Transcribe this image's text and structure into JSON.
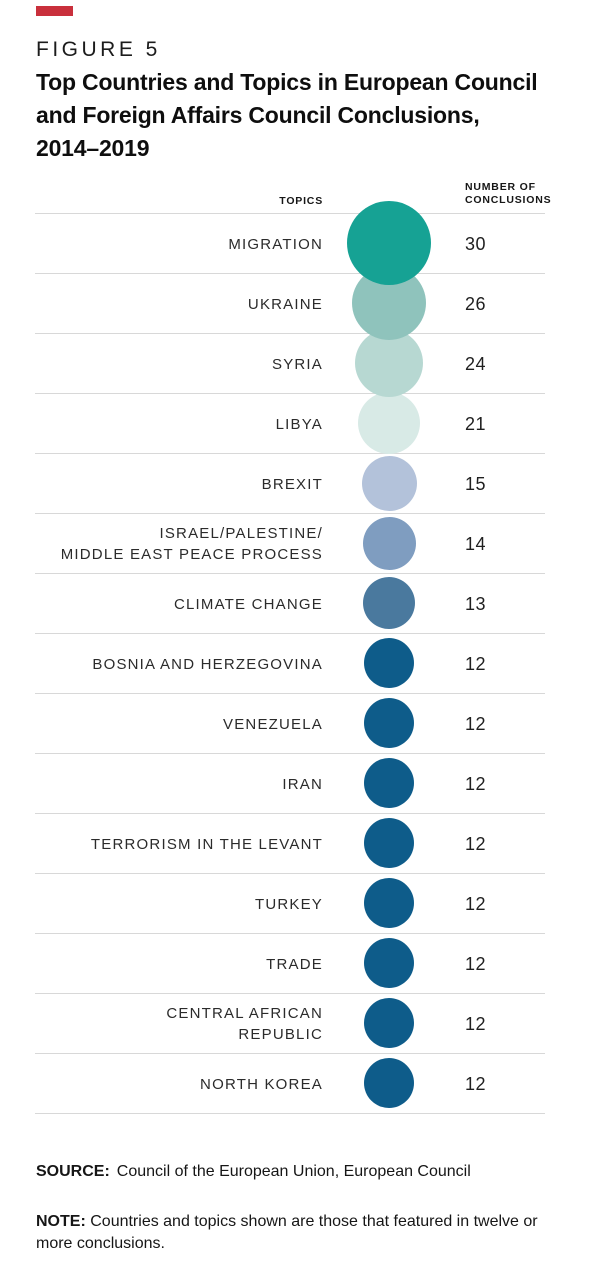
{
  "figure": {
    "label": "FIGURE 5",
    "title": "Top Countries and Topics in European Council\nand Foreign Affairs Council Conclusions,\n2014–2019"
  },
  "headers": {
    "topics": "TOPICS",
    "number": "NUMBER OF\nCONCLUSIONS"
  },
  "colors": {
    "figure_accent": "#c9303c",
    "row_separator": "#d8d8d8"
  },
  "chart_data": {
    "type": "bubble",
    "title": "Top Countries and Topics in European Council and Foreign Affairs Council Conclusions, 2014–2019",
    "columns": [
      "TOPICS",
      "NUMBER OF CONCLUSIONS"
    ],
    "legend_position": "none",
    "grid": "horizontal-row-separators",
    "rows": [
      {
        "topic": "MIGRATION",
        "value": 30,
        "color": "#16a294",
        "diameter": 84
      },
      {
        "topic": "UKRAINE",
        "value": 26,
        "color": "#8fc3bc",
        "diameter": 74
      },
      {
        "topic": "SYRIA",
        "value": 24,
        "color": "#b7d8d2",
        "diameter": 68
      },
      {
        "topic": "LIBYA",
        "value": 21,
        "color": "#d8eae6",
        "diameter": 62
      },
      {
        "topic": "BREXIT",
        "value": 15,
        "color": "#b3c2da",
        "diameter": 55
      },
      {
        "topic": "ISRAEL/PALESTINE/\nMIDDLE EAST PEACE PROCESS",
        "value": 14,
        "color": "#7f9dc0",
        "diameter": 53
      },
      {
        "topic": "CLIMATE CHANGE",
        "value": 13,
        "color": "#4a799e",
        "diameter": 52
      },
      {
        "topic": "BOSNIA AND HERZEGOVINA",
        "value": 12,
        "color": "#0e5c8a",
        "diameter": 50
      },
      {
        "topic": "VENEZUELA",
        "value": 12,
        "color": "#0e5c8a",
        "diameter": 50
      },
      {
        "topic": "IRAN",
        "value": 12,
        "color": "#0e5c8a",
        "diameter": 50
      },
      {
        "topic": "TERRORISM IN THE LEVANT",
        "value": 12,
        "color": "#0e5c8a",
        "diameter": 50
      },
      {
        "topic": "TURKEY",
        "value": 12,
        "color": "#0e5c8a",
        "diameter": 50
      },
      {
        "topic": "TRADE",
        "value": 12,
        "color": "#0e5c8a",
        "diameter": 50
      },
      {
        "topic": "CENTRAL AFRICAN\nREPUBLIC",
        "value": 12,
        "color": "#0e5c8a",
        "diameter": 50
      },
      {
        "topic": "NORTH KOREA",
        "value": 12,
        "color": "#0e5c8a",
        "diameter": 50
      }
    ]
  },
  "source": {
    "label": "SOURCE:",
    "text": "Council of the European Union, European Council"
  },
  "note": {
    "label": "NOTE:",
    "text": "Countries and topics shown are those that featured in twelve or more conclusions."
  }
}
